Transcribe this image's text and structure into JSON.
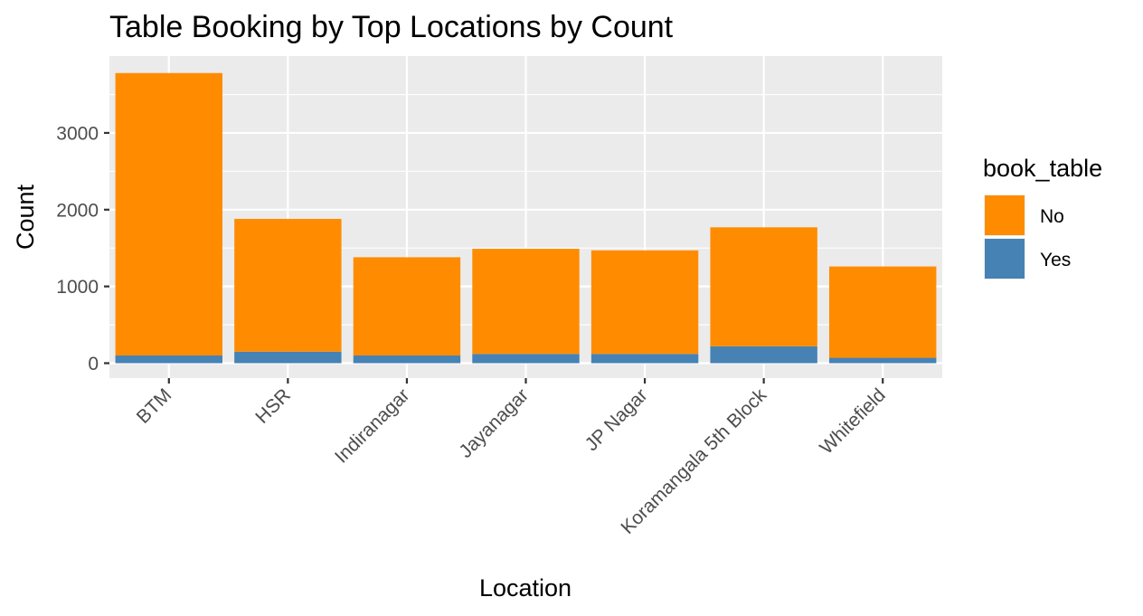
{
  "chart_data": {
    "type": "bar",
    "stacked": true,
    "title": "Table Booking by Top Locations by Count",
    "xlabel": "Location",
    "ylabel": "Count",
    "ylim": [
      0,
      3800
    ],
    "yticks": [
      0,
      1000,
      2000,
      3000
    ],
    "ytick_labels": [
      "0",
      "1000",
      "2000",
      "3000"
    ],
    "categories": [
      "BTM",
      "HSR",
      "Indiranagar",
      "Jayanagar",
      "JP Nagar",
      "Koramangala 5th Block",
      "Whitefield"
    ],
    "series": [
      {
        "name": "No",
        "color": "#FF8C00",
        "values": [
          3680,
          1730,
          1280,
          1370,
          1350,
          1550,
          1190
        ]
      },
      {
        "name": "Yes",
        "color": "#4682B4",
        "values": [
          100,
          150,
          100,
          120,
          120,
          220,
          70
        ]
      }
    ],
    "legend": {
      "title": "book_table",
      "position": "right"
    },
    "grid": true,
    "panel_background": "#EBEBEB",
    "grid_color": "#FFFFFF"
  }
}
